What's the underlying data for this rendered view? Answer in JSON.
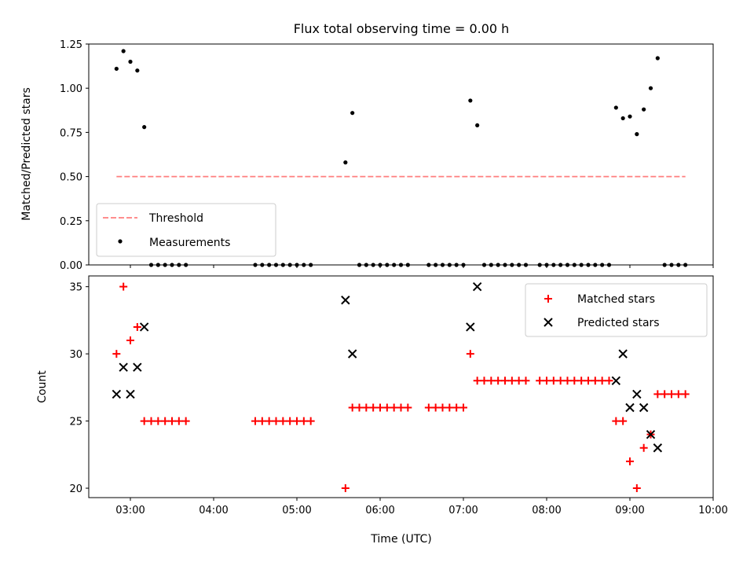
{
  "colors": {
    "threshold": "#ff7f7f",
    "measurement": "#000000",
    "matched": "#ff0000",
    "predicted": "#000000"
  },
  "chart_data": [
    {
      "type": "scatter",
      "title": "Flux total observing time = 0.00 h",
      "xlabel": "",
      "ylabel": "Matched/Predicted stars",
      "xlim": [
        "02:30",
        "10:00"
      ],
      "ylim": [
        0,
        1.25
      ],
      "xticks": [
        "03:00",
        "04:00",
        "05:00",
        "06:00",
        "07:00",
        "08:00",
        "09:00",
        "10:00"
      ],
      "yticks": [
        "0.00",
        "0.25",
        "0.50",
        "0.75",
        "1.00",
        "1.25"
      ],
      "legend": {
        "location": "lower-left",
        "labels": [
          "Threshold",
          "Measurements"
        ]
      },
      "threshold": {
        "name": "Threshold",
        "y": 0.5,
        "x": [
          "02:50",
          "09:40"
        ]
      },
      "series": [
        {
          "name": "Measurements",
          "points": [
            [
              "02:50",
              1.11
            ],
            [
              "02:55",
              1.21
            ],
            [
              "03:00",
              1.15
            ],
            [
              "03:05",
              1.1
            ],
            [
              "03:10",
              0.78
            ],
            [
              "03:15",
              0
            ],
            [
              "03:20",
              0
            ],
            [
              "03:25",
              0
            ],
            [
              "03:30",
              0
            ],
            [
              "03:35",
              0
            ],
            [
              "03:40",
              0
            ],
            [
              "04:30",
              0
            ],
            [
              "04:35",
              0
            ],
            [
              "04:40",
              0
            ],
            [
              "04:45",
              0
            ],
            [
              "04:50",
              0
            ],
            [
              "04:55",
              0
            ],
            [
              "05:00",
              0
            ],
            [
              "05:05",
              0
            ],
            [
              "05:10",
              0
            ],
            [
              "05:35",
              0.58
            ],
            [
              "05:40",
              0.86
            ],
            [
              "05:45",
              0
            ],
            [
              "05:50",
              0
            ],
            [
              "05:55",
              0
            ],
            [
              "06:00",
              0
            ],
            [
              "06:05",
              0
            ],
            [
              "06:10",
              0
            ],
            [
              "06:15",
              0
            ],
            [
              "06:20",
              0
            ],
            [
              "06:35",
              0
            ],
            [
              "06:40",
              0
            ],
            [
              "06:45",
              0
            ],
            [
              "06:50",
              0
            ],
            [
              "06:55",
              0
            ],
            [
              "07:00",
              0
            ],
            [
              "07:05",
              0.93
            ],
            [
              "07:10",
              0.79
            ],
            [
              "07:15",
              0
            ],
            [
              "07:20",
              0
            ],
            [
              "07:25",
              0
            ],
            [
              "07:30",
              0
            ],
            [
              "07:35",
              0
            ],
            [
              "07:40",
              0
            ],
            [
              "07:45",
              0
            ],
            [
              "07:55",
              0
            ],
            [
              "08:00",
              0
            ],
            [
              "08:05",
              0
            ],
            [
              "08:10",
              0
            ],
            [
              "08:15",
              0
            ],
            [
              "08:20",
              0
            ],
            [
              "08:25",
              0
            ],
            [
              "08:30",
              0
            ],
            [
              "08:35",
              0
            ],
            [
              "08:40",
              0
            ],
            [
              "08:45",
              0
            ],
            [
              "08:50",
              0.89
            ],
            [
              "08:55",
              0.83
            ],
            [
              "09:00",
              0.84
            ],
            [
              "09:05",
              0.74
            ],
            [
              "09:10",
              0.88
            ],
            [
              "09:15",
              1.0
            ],
            [
              "09:20",
              1.17
            ],
            [
              "09:25",
              0
            ],
            [
              "09:30",
              0
            ],
            [
              "09:35",
              0
            ],
            [
              "09:40",
              0
            ]
          ]
        }
      ]
    },
    {
      "type": "scatter",
      "title": "",
      "xlabel": "Time (UTC)",
      "ylabel": "Count",
      "xlim": [
        "02:30",
        "10:00"
      ],
      "ylim": [
        19.3,
        35.8
      ],
      "xticks": [
        "03:00",
        "04:00",
        "05:00",
        "06:00",
        "07:00",
        "08:00",
        "09:00",
        "10:00"
      ],
      "yticks": [
        "20",
        "25",
        "30",
        "35"
      ],
      "legend": {
        "location": "upper-right",
        "labels": [
          "Matched stars",
          "Predicted stars"
        ]
      },
      "series": [
        {
          "name": "Matched stars",
          "marker": "plus",
          "points": [
            [
              "02:50",
              30
            ],
            [
              "02:55",
              35
            ],
            [
              "03:00",
              31
            ],
            [
              "03:05",
              32
            ],
            [
              "03:10",
              25
            ],
            [
              "03:15",
              25
            ],
            [
              "03:20",
              25
            ],
            [
              "03:25",
              25
            ],
            [
              "03:30",
              25
            ],
            [
              "03:35",
              25
            ],
            [
              "03:40",
              25
            ],
            [
              "04:30",
              25
            ],
            [
              "04:35",
              25
            ],
            [
              "04:40",
              25
            ],
            [
              "04:45",
              25
            ],
            [
              "04:50",
              25
            ],
            [
              "04:55",
              25
            ],
            [
              "05:00",
              25
            ],
            [
              "05:05",
              25
            ],
            [
              "05:10",
              25
            ],
            [
              "05:35",
              20
            ],
            [
              "05:40",
              26
            ],
            [
              "05:45",
              26
            ],
            [
              "05:50",
              26
            ],
            [
              "05:55",
              26
            ],
            [
              "06:00",
              26
            ],
            [
              "06:05",
              26
            ],
            [
              "06:10",
              26
            ],
            [
              "06:15",
              26
            ],
            [
              "06:20",
              26
            ],
            [
              "06:35",
              26
            ],
            [
              "06:40",
              26
            ],
            [
              "06:45",
              26
            ],
            [
              "06:50",
              26
            ],
            [
              "06:55",
              26
            ],
            [
              "07:00",
              26
            ],
            [
              "07:05",
              30
            ],
            [
              "07:10",
              28
            ],
            [
              "07:15",
              28
            ],
            [
              "07:20",
              28
            ],
            [
              "07:25",
              28
            ],
            [
              "07:30",
              28
            ],
            [
              "07:35",
              28
            ],
            [
              "07:40",
              28
            ],
            [
              "07:45",
              28
            ],
            [
              "07:55",
              28
            ],
            [
              "08:00",
              28
            ],
            [
              "08:05",
              28
            ],
            [
              "08:10",
              28
            ],
            [
              "08:15",
              28
            ],
            [
              "08:20",
              28
            ],
            [
              "08:25",
              28
            ],
            [
              "08:30",
              28
            ],
            [
              "08:35",
              28
            ],
            [
              "08:40",
              28
            ],
            [
              "08:45",
              28
            ],
            [
              "08:50",
              25
            ],
            [
              "08:55",
              25
            ],
            [
              "09:00",
              22
            ],
            [
              "09:05",
              20
            ],
            [
              "09:10",
              23
            ],
            [
              "09:15",
              24
            ],
            [
              "09:20",
              27
            ],
            [
              "09:25",
              27
            ],
            [
              "09:30",
              27
            ],
            [
              "09:35",
              27
            ],
            [
              "09:40",
              27
            ]
          ]
        },
        {
          "name": "Predicted stars",
          "marker": "x",
          "points": [
            [
              "02:50",
              27
            ],
            [
              "02:55",
              29
            ],
            [
              "03:00",
              27
            ],
            [
              "03:05",
              29
            ],
            [
              "03:10",
              32
            ],
            [
              "05:35",
              34
            ],
            [
              "05:40",
              30
            ],
            [
              "07:05",
              32
            ],
            [
              "07:10",
              35
            ],
            [
              "08:50",
              28
            ],
            [
              "08:55",
              30
            ],
            [
              "09:00",
              26
            ],
            [
              "09:05",
              27
            ],
            [
              "09:10",
              26
            ],
            [
              "09:15",
              24
            ],
            [
              "09:20",
              23
            ]
          ]
        }
      ]
    }
  ]
}
